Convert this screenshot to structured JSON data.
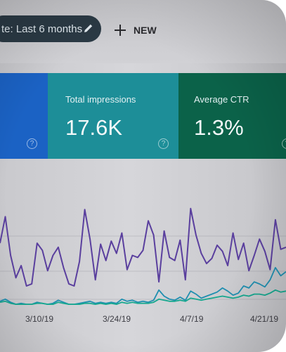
{
  "toolbar": {
    "date_range_label": "te: Last 6 months",
    "new_label": "NEW"
  },
  "cards": {
    "impressions": {
      "label": "Total impressions",
      "value": "17.6K",
      "color": "#1d8e98"
    },
    "ctr": {
      "label": "Average CTR",
      "value": "1.3%",
      "color": "#0b6249"
    },
    "clicks": {
      "color": "#1b62c4"
    }
  },
  "chart_data": {
    "type": "line",
    "x_ticks": [
      "3/10/19",
      "3/24/19",
      "4/7/19",
      "4/21/19"
    ],
    "series": [
      {
        "color": "#5a3f9e",
        "values": [
          62,
          88,
          50,
          28,
          40,
          20,
          22,
          62,
          55,
          35,
          50,
          58,
          38,
          22,
          20,
          44,
          95,
          66,
          26,
          61,
          45,
          64,
          52,
          72,
          36,
          50,
          48,
          55,
          84,
          70,
          24,
          74,
          48,
          45,
          65,
          26,
          96,
          70,
          52,
          42,
          47,
          60,
          54,
          40,
          72,
          46,
          62,
          35,
          50,
          66,
          54,
          36,
          85,
          56,
          58
        ]
      },
      {
        "color": "#1f8fb0",
        "values": [
          5,
          7,
          4,
          2,
          3,
          2,
          2,
          4,
          3,
          2,
          3,
          6,
          4,
          2,
          2,
          3,
          4,
          5,
          3,
          4,
          3,
          4,
          3,
          7,
          5,
          6,
          4,
          5,
          4,
          6,
          16,
          10,
          7,
          6,
          9,
          6,
          15,
          12,
          8,
          10,
          12,
          14,
          18,
          15,
          11,
          13,
          20,
          18,
          24,
          22,
          19,
          26,
          38,
          30,
          34
        ]
      },
      {
        "color": "#17a88f",
        "values": [
          4,
          5,
          3,
          2,
          2,
          2,
          2,
          3,
          3,
          2,
          2,
          4,
          3,
          2,
          2,
          2,
          3,
          3,
          2,
          3,
          2,
          3,
          2,
          4,
          3,
          4,
          3,
          3,
          3,
          4,
          7,
          6,
          5,
          5,
          6,
          5,
          8,
          7,
          6,
          7,
          8,
          9,
          10,
          9,
          8,
          9,
          11,
          10,
          12,
          12,
          11,
          13,
          16,
          14,
          15
        ]
      }
    ]
  }
}
